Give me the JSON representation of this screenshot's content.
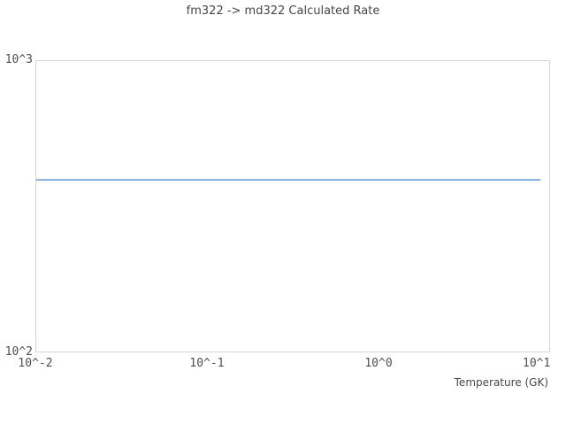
{
  "colors": {
    "background": "#ffffff",
    "plot_border": "#d4d4d4",
    "title_text": "#474747",
    "tick_text": "#4f4f4f",
    "series_line": "#5b97d5"
  },
  "chart_data": {
    "type": "line",
    "title": "fm322 -> md322 Calculated Rate",
    "xlabel": "Temperature (GK)",
    "ylabel": "",
    "x_scale": "log",
    "y_scale": "log",
    "xlim": [
      0.01,
      10
    ],
    "ylim": [
      100,
      1000
    ],
    "x_ticks": [
      {
        "label": "10^-2",
        "value": 0.01
      },
      {
        "label": "10^-1",
        "value": 0.1
      },
      {
        "label": "10^0",
        "value": 1
      },
      {
        "label": "10^1",
        "value": 10
      }
    ],
    "y_ticks": [
      {
        "label": "10^2",
        "value": 100
      },
      {
        "label": "10^3",
        "value": 1000
      }
    ],
    "grid": false,
    "legend": false,
    "series": [
      {
        "name": "calculated rate",
        "color": "#5b97d5",
        "stroke_width": 1.5,
        "x": [
          0.01,
          8.9
        ],
        "y": [
          390,
          390
        ]
      }
    ]
  }
}
